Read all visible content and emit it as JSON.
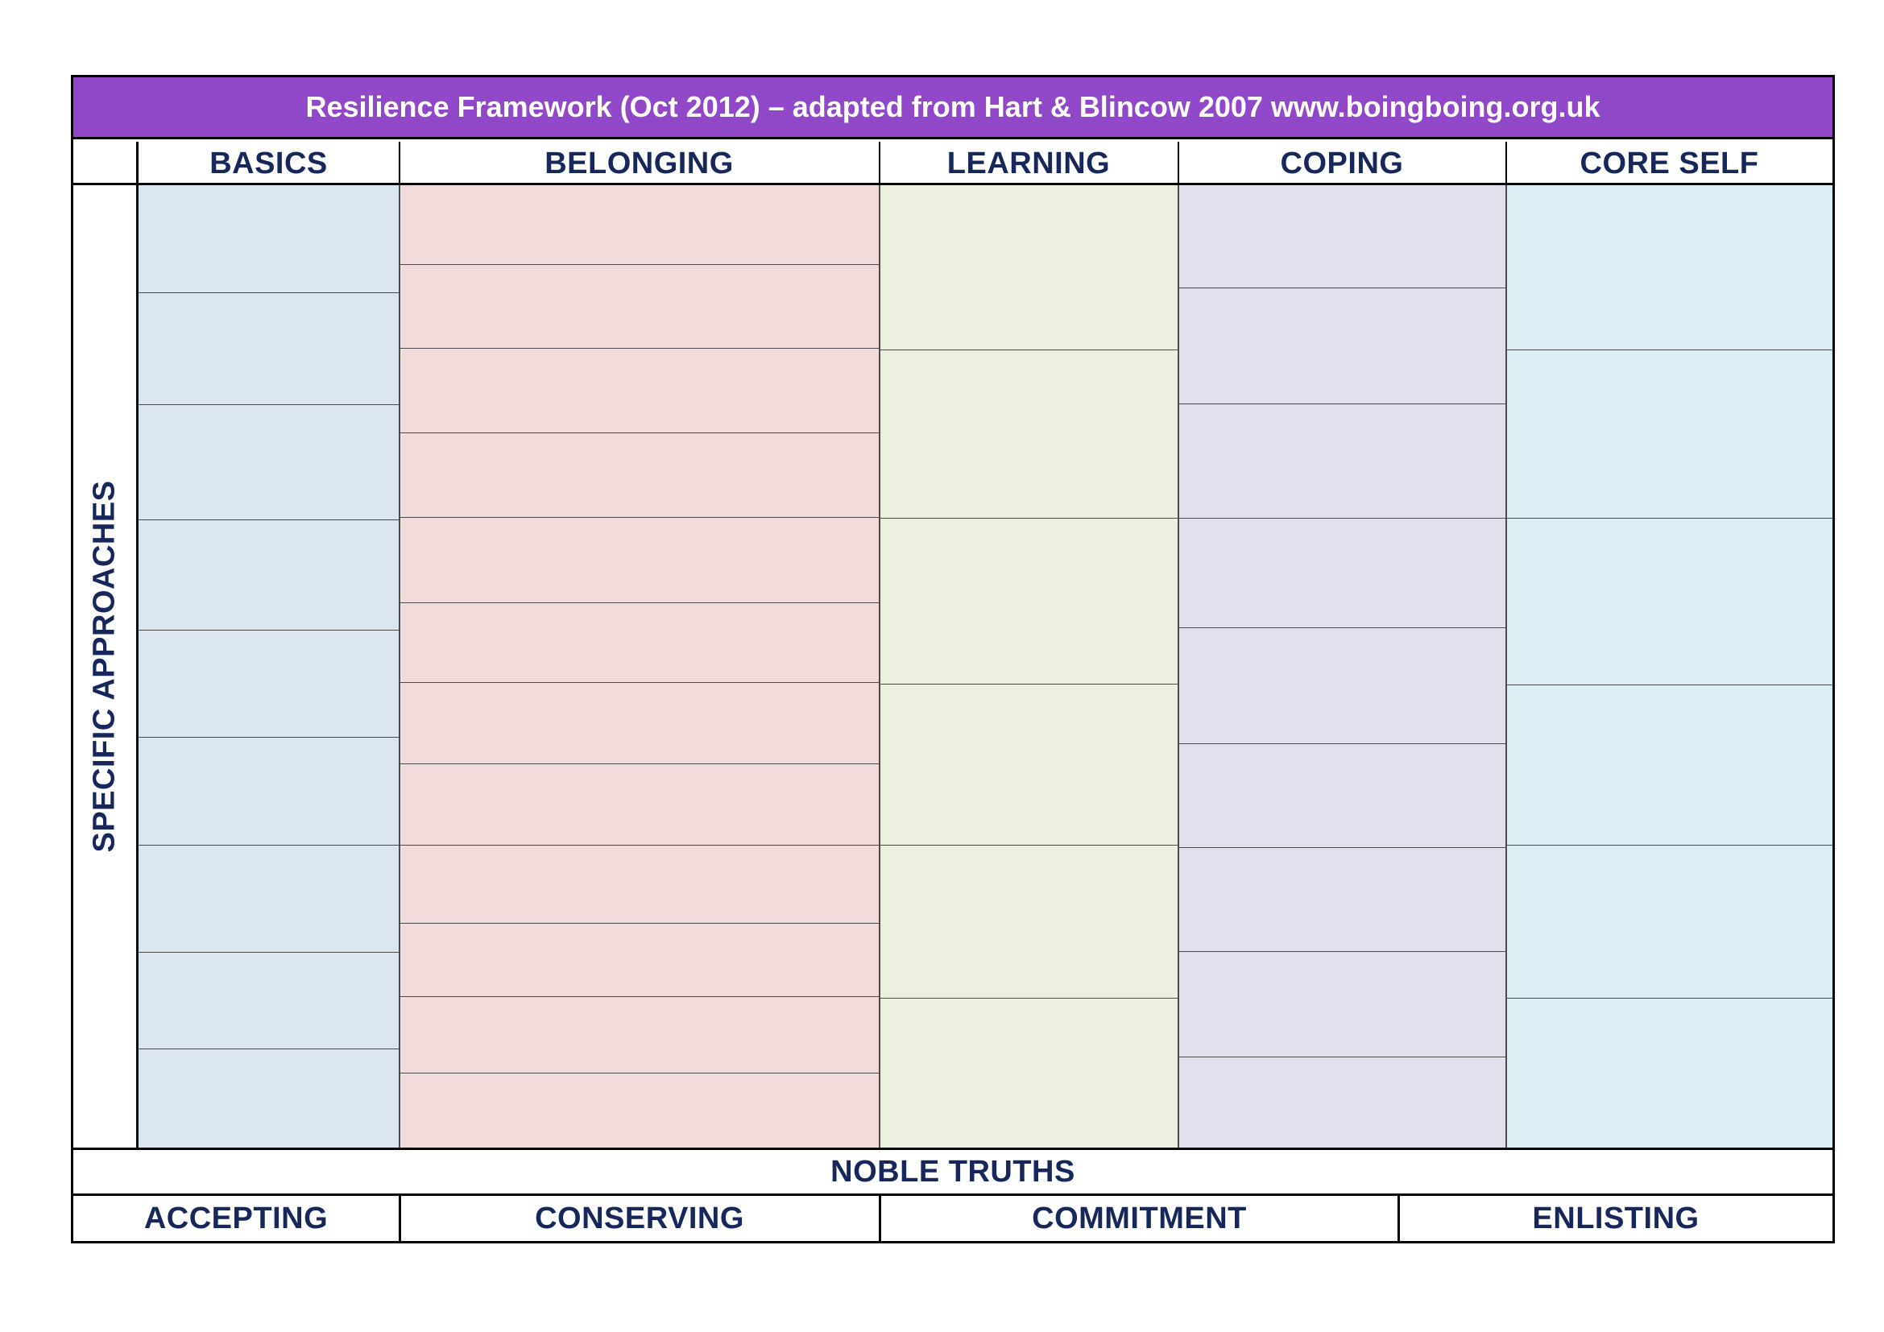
{
  "title": "Resilience Framework (Oct 2012) – adapted from Hart & Blincow 2007 www.boingboing.org.uk",
  "side_label": "SPECIFIC APPROACHES",
  "columns": [
    {
      "label": "BASICS",
      "color": "#dce6f1"
    },
    {
      "label": "BELONGING",
      "color": "#f2dcdb"
    },
    {
      "label": "LEARNING",
      "color": "#ebf1de"
    },
    {
      "label": "COPING",
      "color": "#e4dfec"
    },
    {
      "label": "CORE SELF",
      "color": "#daeef3"
    }
  ],
  "footer": {
    "heading": "NOBLE TRUTHS",
    "items": [
      "ACCEPTING",
      "CONSERVING",
      "COMMITMENT",
      "ENLISTING"
    ]
  },
  "colors": {
    "title_bar": "#9148c8",
    "title_text": "#ffffff",
    "heading_text": "#17275c"
  }
}
